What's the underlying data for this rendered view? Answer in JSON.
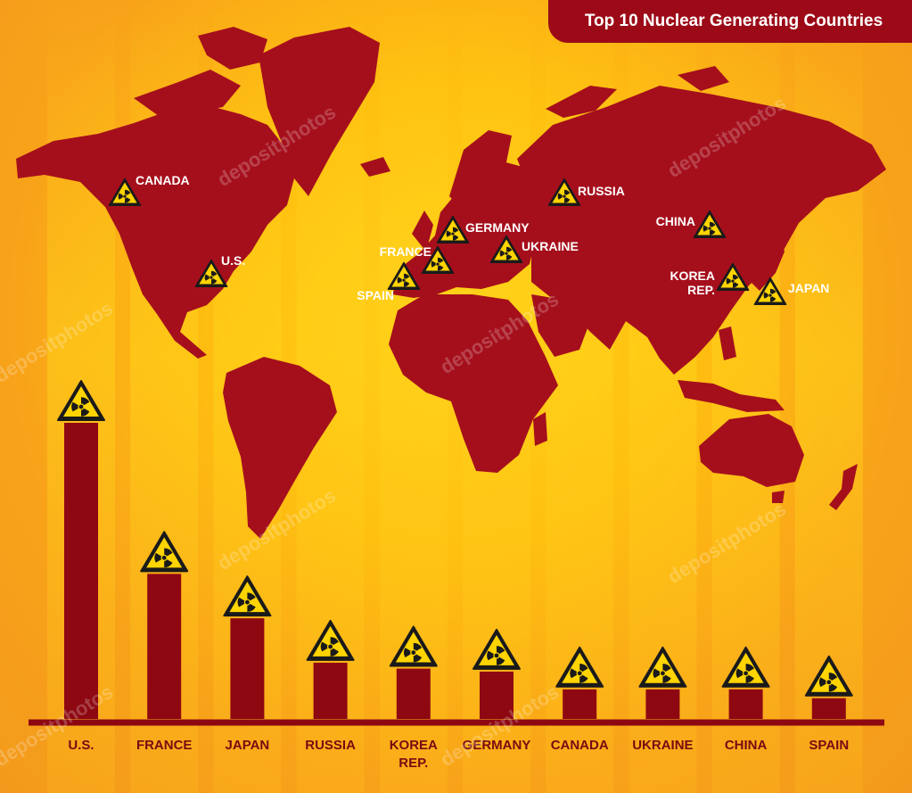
{
  "title": "Top 10 Nuclear Generating Countries",
  "watermark": "depositphotos",
  "colors": {
    "map": "#a50f1c",
    "bar": "#8e0812",
    "axis": "#8e0812",
    "label": "#7a0a12",
    "warning_yellow": "#ffd400",
    "title_bg": "#9c0a17"
  },
  "map_markers": [
    {
      "icon": "radiation-warning-icon",
      "label": "CANADA"
    },
    {
      "icon": "radiation-warning-icon",
      "label": "U.S."
    },
    {
      "icon": "radiation-warning-icon",
      "label": "FRANCE"
    },
    {
      "icon": "radiation-warning-icon",
      "label": "SPAIN"
    },
    {
      "icon": "radiation-warning-icon",
      "label": "GERMANY"
    },
    {
      "icon": "radiation-warning-icon",
      "label": "UKRAINE"
    },
    {
      "icon": "radiation-warning-icon",
      "label": "RUSSIA"
    },
    {
      "icon": "radiation-warning-icon",
      "label": "CHINA"
    },
    {
      "icon": "radiation-warning-icon",
      "label": "KOREA REP."
    },
    {
      "icon": "radiation-warning-icon",
      "label": "JAPAN"
    }
  ],
  "chart_data": {
    "type": "bar",
    "title": "Top 10 Nuclear Generating Countries",
    "categories": [
      "U.S.",
      "FRANCE",
      "JAPAN",
      "RUSSIA",
      "KOREA REP.",
      "GERMANY",
      "CANADA",
      "UKRAINE",
      "CHINA",
      "SPAIN"
    ],
    "values": [
      100,
      49,
      34,
      19,
      17,
      16,
      10,
      10,
      10,
      7
    ],
    "ylim": [
      0,
      100
    ],
    "marker_icon": "radiation-warning-icon",
    "xlabel": "",
    "ylabel": "",
    "grid": false,
    "legend": "none"
  }
}
